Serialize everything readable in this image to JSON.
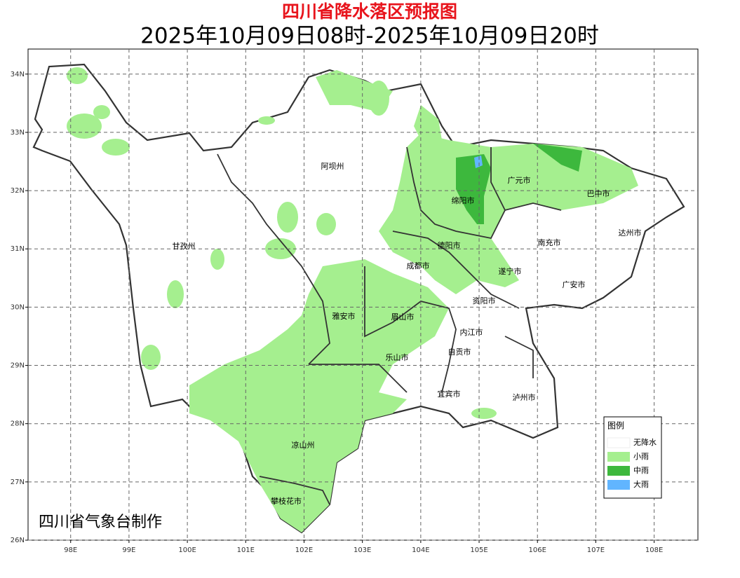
{
  "header": {
    "title": "四川省降水落区预报图",
    "subtitle": "2025年10月09日08时-2025年10月09日20时"
  },
  "map": {
    "lon_range": [
      97.27,
      108.75
    ],
    "lat_range": [
      26,
      34.43
    ],
    "lon_ticks": [
      {
        "value": 98,
        "label": "98E"
      },
      {
        "value": 99,
        "label": "99E"
      },
      {
        "value": 100,
        "label": "100E"
      },
      {
        "value": 101,
        "label": "101E"
      },
      {
        "value": 102,
        "label": "102E"
      },
      {
        "value": 103,
        "label": "103E"
      },
      {
        "value": 104,
        "label": "104E"
      },
      {
        "value": 105,
        "label": "105E"
      },
      {
        "value": 106,
        "label": "106E"
      },
      {
        "value": 107,
        "label": "107E"
      },
      {
        "value": 108,
        "label": "108E"
      }
    ],
    "lat_ticks": [
      {
        "value": 26,
        "label": "26N"
      },
      {
        "value": 27,
        "label": "27N"
      },
      {
        "value": 28,
        "label": "28N"
      },
      {
        "value": 29,
        "label": "29N"
      },
      {
        "value": 30,
        "label": "30N"
      },
      {
        "value": 31,
        "label": "31N"
      },
      {
        "value": 32,
        "label": "32N"
      },
      {
        "value": 33,
        "label": "33N"
      },
      {
        "value": 34,
        "label": "34N"
      }
    ],
    "cities": [
      "阿坝州",
      "广元市",
      "巴中市",
      "绵阳市",
      "达州市",
      "甘孜州",
      "德阳市",
      "南充市",
      "成都市",
      "遂宁市",
      "广安市",
      "资阳市",
      "雅安市",
      "眉山市",
      "内江市",
      "自贡市",
      "乐山市",
      "宜宾市",
      "泸州市",
      "凉山州",
      "攀枝花市"
    ],
    "credit": "四川省气象台制作"
  },
  "legend": {
    "title": "图例",
    "items": [
      {
        "label": "无降水",
        "color": "#ffffff"
      },
      {
        "label": "小雨",
        "color": "#a5ef8f"
      },
      {
        "label": "中雨",
        "color": "#3db83d"
      },
      {
        "label": "大雨",
        "color": "#61b5ff"
      }
    ]
  }
}
